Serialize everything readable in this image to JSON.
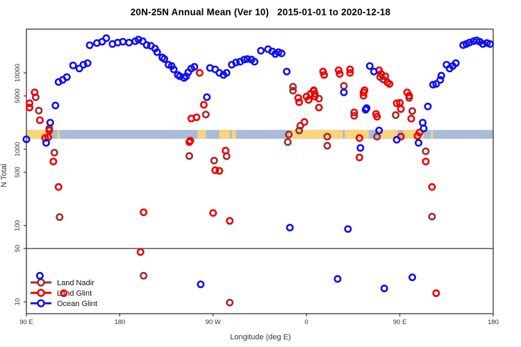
{
  "chart_data": {
    "type": "scatter",
    "title": "20N-25N Annual Mean (Ver 10)   2015-01-01 to 2020-12-18",
    "xlabel": "Longitude (deg E)",
    "ylabel": "N Total",
    "x_axis": {
      "range_deg_continuous": [
        90,
        540
      ],
      "ticks": [
        {
          "lon": 90,
          "label": "90 E"
        },
        {
          "lon": 180,
          "label": "180"
        },
        {
          "lon": 270,
          "label": "90 W"
        },
        {
          "lon": 360,
          "label": "0"
        },
        {
          "lon": 450,
          "label": "90 E"
        },
        {
          "lon": 540,
          "label": "180"
        }
      ]
    },
    "y_axis": {
      "scale": "log",
      "range": [
        7,
        37000
      ],
      "ticks": [
        {
          "value": 10000,
          "label": "10000"
        },
        {
          "value": 5000,
          "label": "5000"
        },
        {
          "value": 1000,
          "label": "1000"
        },
        {
          "value": 500,
          "label": "500"
        },
        {
          "value": 100,
          "label": "100"
        },
        {
          "value": 50,
          "label": "50"
        },
        {
          "value": 10,
          "label": "10"
        }
      ]
    },
    "reference_line": {
      "value": 50,
      "color": "#333333"
    },
    "map_strip": {
      "value_top": 1790,
      "value_bottom": 1370,
      "ocean_color": "#A8BCD8",
      "land_color": "#FBD47E",
      "land_segments_frac": [
        [
          0.0,
          0.051
        ],
        [
          0.0667,
          0.0711
        ],
        [
          0.3667,
          0.3844
        ],
        [
          0.4133,
          0.4356
        ],
        [
          0.44,
          0.4489
        ],
        [
          0.5622,
          0.6778
        ],
        [
          0.6822,
          0.7333
        ],
        [
          0.7533,
          0.7956
        ],
        [
          0.8067,
          0.8511
        ],
        [
          0.8667,
          0.8711
        ]
      ]
    },
    "legend": {
      "entries": [
        "Land Nadir",
        "Land Glint",
        "Ocean Glint"
      ],
      "position": "bottom-left"
    },
    "series": [
      {
        "name": "Land Nadir",
        "color": "#A52A2A",
        "points": [
          [
            99,
            4800
          ],
          [
            102,
            3200
          ],
          [
            112,
            1870
          ],
          [
            117,
            900
          ],
          [
            122,
            129
          ],
          [
            203,
            22
          ],
          [
            247,
            815
          ],
          [
            263,
            2850
          ],
          [
            271,
            710
          ],
          [
            283,
            810
          ],
          [
            286,
            9.8
          ],
          [
            342,
            1240
          ],
          [
            343,
            1560
          ],
          [
            347,
            6580
          ],
          [
            347,
            5850
          ],
          [
            353,
            1760
          ],
          [
            354,
            2030
          ],
          [
            367,
            5920
          ],
          [
            368,
            5330
          ],
          [
            372,
            4600
          ],
          [
            380,
            1460
          ],
          [
            380,
            1110
          ],
          [
            396,
            6750
          ],
          [
            406,
            2740
          ],
          [
            428,
            1460
          ],
          [
            431,
            8800
          ],
          [
            434,
            8200
          ],
          [
            446,
            2800
          ],
          [
            459,
            4700
          ],
          [
            462,
            3160
          ],
          [
            475,
            940
          ],
          [
            481,
            131
          ]
        ]
      },
      {
        "name": "Land Glint",
        "color": "#EE0000",
        "points": [
          [
            93,
            4000
          ],
          [
            93,
            3510
          ],
          [
            98,
            5550
          ],
          [
            103,
            2400
          ],
          [
            108,
            1400
          ],
          [
            111,
            1430
          ],
          [
            112,
            1760
          ],
          [
            116,
            690
          ],
          [
            121,
            320
          ],
          [
            126,
            13
          ],
          [
            200,
            45
          ],
          [
            203,
            149
          ],
          [
            247,
            1240
          ],
          [
            248,
            1290
          ],
          [
            249,
            2520
          ],
          [
            254,
            2620
          ],
          [
            257,
            10000
          ],
          [
            261,
            3820
          ],
          [
            270,
            146
          ],
          [
            272,
            530
          ],
          [
            276,
            520
          ],
          [
            282,
            960
          ],
          [
            286,
            115
          ],
          [
            352,
            4700
          ],
          [
            353,
            4130
          ],
          [
            358,
            2270
          ],
          [
            360,
            4900
          ],
          [
            362,
            4420
          ],
          [
            364,
            5330
          ],
          [
            367,
            5800
          ],
          [
            368,
            4900
          ],
          [
            372,
            3510
          ],
          [
            376,
            10400
          ],
          [
            377,
            9400
          ],
          [
            391,
            10800
          ],
          [
            392,
            9700
          ],
          [
            402,
            11100
          ],
          [
            402,
            10000
          ],
          [
            406,
            3030
          ],
          [
            411,
            1400
          ],
          [
            411,
            780
          ],
          [
            415,
            5550
          ],
          [
            415,
            5020
          ],
          [
            416,
            5920
          ],
          [
            427,
            2900
          ],
          [
            428,
            2670
          ],
          [
            430,
            10800
          ],
          [
            432,
            9700
          ],
          [
            436,
            9000
          ],
          [
            438,
            7500
          ],
          [
            440,
            7150
          ],
          [
            447,
            4000
          ],
          [
            450,
            4060
          ],
          [
            451,
            3360
          ],
          [
            451,
            1460
          ],
          [
            457,
            5550
          ],
          [
            459,
            5020
          ],
          [
            461,
            2510
          ],
          [
            467,
            1490
          ],
          [
            469,
            1660
          ],
          [
            475,
            690
          ],
          [
            481,
            320
          ],
          [
            485,
            13
          ]
        ]
      },
      {
        "name": "Ocean Glint",
        "color": "#1010EE",
        "points": [
          [
            90,
            1350
          ],
          [
            103,
            22
          ],
          [
            109,
            1210
          ],
          [
            113,
            2230
          ],
          [
            118,
            3740
          ],
          [
            121,
            7600
          ],
          [
            125,
            8100
          ],
          [
            129,
            8800
          ],
          [
            135,
            12500
          ],
          [
            141,
            11400
          ],
          [
            145,
            12800
          ],
          [
            149,
            13400
          ],
          [
            151,
            23000
          ],
          [
            158,
            24600
          ],
          [
            163,
            25600
          ],
          [
            167,
            28500
          ],
          [
            173,
            23900
          ],
          [
            178,
            24900
          ],
          [
            183,
            25600
          ],
          [
            189,
            24900
          ],
          [
            195,
            26000
          ],
          [
            198,
            27300
          ],
          [
            202,
            26000
          ],
          [
            206,
            23100
          ],
          [
            210,
            22600
          ],
          [
            214,
            20800
          ],
          [
            216,
            18700
          ],
          [
            221,
            15900
          ],
          [
            223,
            15200
          ],
          [
            227,
            12800
          ],
          [
            230,
            12300
          ],
          [
            232,
            11100
          ],
          [
            236,
            9400
          ],
          [
            238,
            9000
          ],
          [
            242,
            8600
          ],
          [
            244,
            9000
          ],
          [
            246,
            10200
          ],
          [
            249,
            11400
          ],
          [
            252,
            12000
          ],
          [
            258,
            17
          ],
          [
            264,
            4810
          ],
          [
            267,
            11600
          ],
          [
            272,
            11100
          ],
          [
            276,
            10000
          ],
          [
            280,
            9400
          ],
          [
            283,
            10000
          ],
          [
            288,
            12800
          ],
          [
            292,
            13700
          ],
          [
            296,
            14000
          ],
          [
            300,
            14900
          ],
          [
            303,
            15200
          ],
          [
            307,
            14900
          ],
          [
            310,
            14000
          ],
          [
            316,
            19500
          ],
          [
            323,
            20400
          ],
          [
            327,
            19100
          ],
          [
            330,
            17700
          ],
          [
            333,
            18700
          ],
          [
            336,
            18000
          ],
          [
            341,
            10400
          ],
          [
            344,
            94
          ],
          [
            390,
            20
          ],
          [
            396,
            5550
          ],
          [
            400,
            90
          ],
          [
            412,
            1040
          ],
          [
            417,
            3290
          ],
          [
            418,
            3450
          ],
          [
            421,
            12300
          ],
          [
            425,
            10400
          ],
          [
            430,
            1760
          ],
          [
            435,
            15
          ],
          [
            447,
            1330
          ],
          [
            462,
            21
          ],
          [
            468,
            1210
          ],
          [
            472,
            2230
          ],
          [
            473,
            1870
          ],
          [
            477,
            3630
          ],
          [
            482,
            7000
          ],
          [
            485,
            7150
          ],
          [
            489,
            8100
          ],
          [
            490,
            9200
          ],
          [
            495,
            12800
          ],
          [
            498,
            11400
          ],
          [
            501,
            12300
          ],
          [
            504,
            13400
          ],
          [
            511,
            23100
          ],
          [
            514,
            23900
          ],
          [
            517,
            24900
          ],
          [
            521,
            26000
          ],
          [
            524,
            26700
          ],
          [
            527,
            25600
          ],
          [
            530,
            23900
          ],
          [
            534,
            24600
          ],
          [
            537,
            23900
          ]
        ]
      }
    ]
  }
}
